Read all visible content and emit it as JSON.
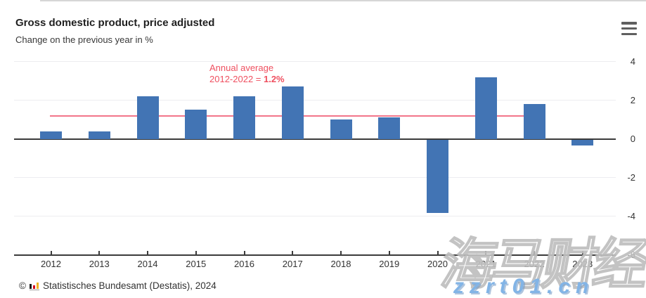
{
  "header": {
    "title": "Gross domestic product, price adjusted",
    "subtitle": "Change on the previous year in %",
    "menu_icon": "hamburger-menu-icon"
  },
  "chart_data": {
    "type": "bar",
    "title": "Gross domestic product, price adjusted",
    "subtitle": "Change on the previous year in %",
    "categories": [
      "2012",
      "2013",
      "2014",
      "2015",
      "2016",
      "2017",
      "2018",
      "2019",
      "2020",
      "2021",
      "2022",
      "2023"
    ],
    "values": [
      0.4,
      0.4,
      2.2,
      1.5,
      2.2,
      2.7,
      1.0,
      1.1,
      -3.8,
      3.2,
      1.8,
      -0.3
    ],
    "unit": "%",
    "bar_color": "#4274b4",
    "yticks": [
      4,
      2,
      0,
      -2,
      -4,
      -6
    ],
    "ylim": [
      -6,
      4
    ],
    "grid": true,
    "axis_side": "right",
    "reference_line": {
      "value": 1.2,
      "color": "#f2758a",
      "label_line1": "Annual average",
      "label_line2_prefix": "2012-2022 = ",
      "label_line2_value": "1.2%",
      "label_color": "#ef5060",
      "span_years": [
        "2012",
        "2022"
      ]
    }
  },
  "footer": {
    "copyright": "©",
    "source_icon": "destatis-bar-chart-icon",
    "text": "Statistisches Bundesamt (Destatis), 2024"
  },
  "watermark": {
    "cn_text": "海马财经",
    "url_text": "zzrt01.cn",
    "url_color": "#82b4e6"
  }
}
